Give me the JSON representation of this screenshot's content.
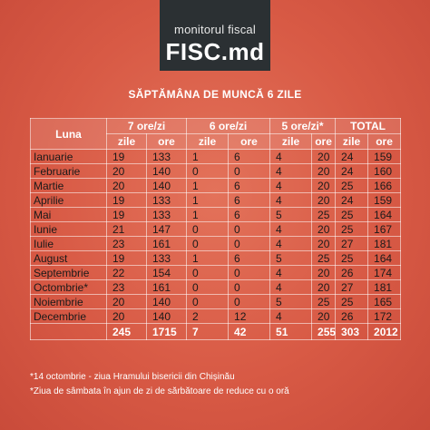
{
  "logo": {
    "top_text": "monitorul fiscal",
    "brand": "FISC.md"
  },
  "title": "SĂPTĂMÂNA DE MUNCĂ 6 ZILE",
  "table": {
    "month_header": "Luna",
    "groups": [
      "7 ore/zi",
      "6 ore/zi",
      "5 ore/zi*",
      "TOTAL"
    ],
    "sub_headers": [
      "zile",
      "ore",
      "zile",
      "ore",
      "zile",
      "ore",
      "zile",
      "ore"
    ],
    "rows": [
      {
        "luna": "Ianuarie",
        "v": [
          "19",
          "133",
          "1",
          "6",
          "4",
          "20",
          "24",
          "159"
        ]
      },
      {
        "luna": "Februarie",
        "v": [
          "20",
          "140",
          "0",
          "0",
          "4",
          "20",
          "24",
          "160"
        ]
      },
      {
        "luna": "Martie",
        "v": [
          "20",
          "140",
          "1",
          "6",
          "4",
          "20",
          "25",
          "166"
        ]
      },
      {
        "luna": "Aprilie",
        "v": [
          "19",
          "133",
          "1",
          "6",
          "4",
          "20",
          "24",
          "159"
        ]
      },
      {
        "luna": "Mai",
        "v": [
          "19",
          "133",
          "1",
          "6",
          "5",
          "25",
          "25",
          "164"
        ]
      },
      {
        "luna": "Iunie",
        "v": [
          "21",
          "147",
          "0",
          "0",
          "4",
          "20",
          "25",
          "167"
        ]
      },
      {
        "luna": "Iulie",
        "v": [
          "23",
          "161",
          "0",
          "0",
          "4",
          "20",
          "27",
          "181"
        ]
      },
      {
        "luna": "August",
        "v": [
          "19",
          "133",
          "1",
          "6",
          "5",
          "25",
          "25",
          "164"
        ]
      },
      {
        "luna": "Septembrie",
        "v": [
          "22",
          "154",
          "0",
          "0",
          "4",
          "20",
          "26",
          "174"
        ]
      },
      {
        "luna": "Octombrie*",
        "v": [
          "23",
          "161",
          "0",
          "0",
          "4",
          "20",
          "27",
          "181"
        ]
      },
      {
        "luna": "Noiembrie",
        "v": [
          "20",
          "140",
          "0",
          "0",
          "5",
          "25",
          "25",
          "165"
        ]
      },
      {
        "luna": "Decembrie",
        "v": [
          "20",
          "140",
          "2",
          "12",
          "4",
          "20",
          "26",
          "172"
        ]
      }
    ],
    "totals": [
      "245",
      "1715",
      "7",
      "42",
      "51",
      "255",
      "303",
      "2012"
    ]
  },
  "notes": [
    "*14 octombrie - ziua Hramului bisericii din Chișinău",
    "*Ziua de sâmbata în ajun de zi de sărbătoare de reduce cu o oră"
  ]
}
